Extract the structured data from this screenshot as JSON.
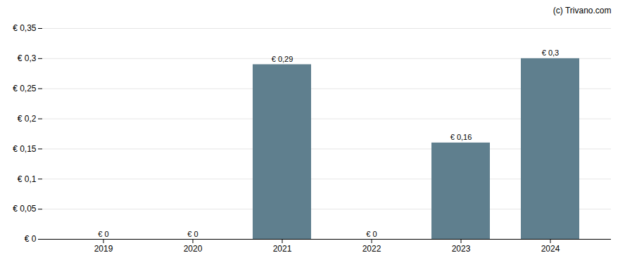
{
  "chart_data": {
    "type": "bar",
    "categories": [
      "2019",
      "2020",
      "2021",
      "2022",
      "2023",
      "2024"
    ],
    "values": [
      0,
      0,
      0.29,
      0,
      0.16,
      0.3
    ],
    "value_labels": [
      "€ 0",
      "€ 0",
      "€ 0,29",
      "€ 0",
      "€ 0,16",
      "€ 0,3"
    ],
    "color": "#5f7f8e",
    "ylim": [
      0,
      0.35
    ],
    "yticks": [
      {
        "value": 0,
        "label": "€ 0"
      },
      {
        "value": 0.05,
        "label": "€ 0,05"
      },
      {
        "value": 0.1,
        "label": "€ 0,1"
      },
      {
        "value": 0.15,
        "label": "€ 0,15"
      },
      {
        "value": 0.2,
        "label": "€ 0,2"
      },
      {
        "value": 0.25,
        "label": "€ 0,25"
      },
      {
        "value": 0.3,
        "label": "€ 0,3"
      },
      {
        "value": 0.35,
        "label": "€ 0,35"
      }
    ],
    "grid": true,
    "data_labels": true,
    "annotations": [
      "(c) Trivano.com"
    ]
  }
}
